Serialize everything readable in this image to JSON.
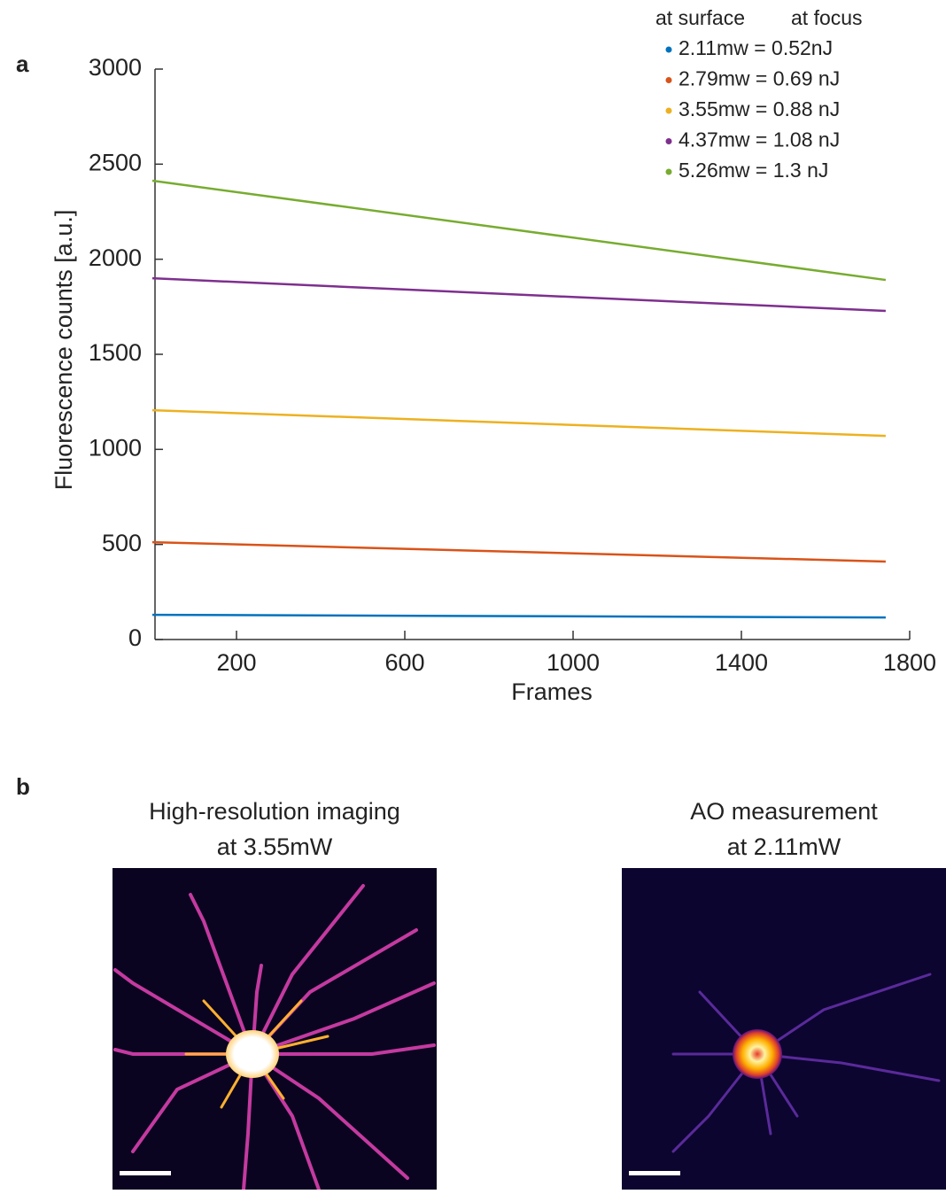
{
  "panels": {
    "a": "a",
    "b": "b"
  },
  "chart_data": {
    "type": "line",
    "xlabel": "Frames",
    "ylabel": "Fluorescence counts [a.u.]",
    "legend_header": [
      "at surface",
      "at focus"
    ],
    "x": [
      0,
      1743
    ],
    "series": [
      {
        "name": "2.11mw = 0.52nJ",
        "color": "#0072bd",
        "values": [
          130,
          116
        ]
      },
      {
        "name": "2.79mw = 0.69 nJ",
        "color": "#d95319",
        "values": [
          512,
          410
        ]
      },
      {
        "name": "3.55mw = 0.88 nJ",
        "color": "#edb120",
        "values": [
          1206,
          1071
        ]
      },
      {
        "name": "4.37mw = 1.08 nJ",
        "color": "#7e2f8e",
        "values": [
          1900,
          1728
        ]
      },
      {
        "name": "5.26mw = 1.3 nJ",
        "color": "#77ac30",
        "values": [
          2413,
          1891
        ]
      }
    ],
    "xlim": [
      0,
      1800
    ],
    "ylim": [
      0,
      3000
    ],
    "xticks": [
      200,
      600,
      1000,
      1400,
      1800
    ],
    "yticks": [
      0,
      500,
      1000,
      1500,
      2000,
      2500,
      3000
    ],
    "legend": "upper right"
  },
  "images": [
    {
      "title": [
        "High-resolution imaging",
        "at 3.55mW"
      ]
    },
    {
      "title": [
        "AO measurement",
        "at 2.11mW"
      ]
    }
  ]
}
